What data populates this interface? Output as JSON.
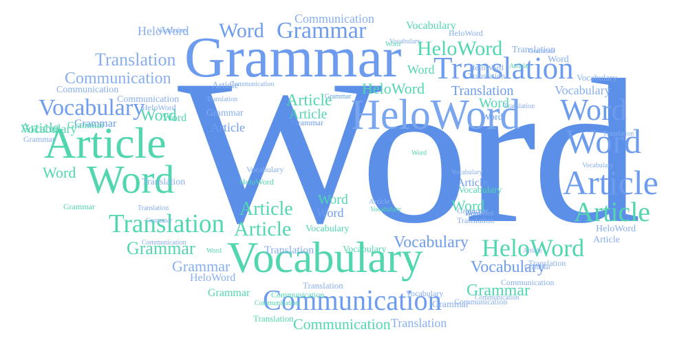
{
  "palette": {
    "blue": "#6495ed",
    "light_blue": "#87aef0",
    "green": "#4fd6b3",
    "light_green": "#7fe0c4"
  },
  "words": [
    {
      "text": "Word",
      "color": "#5b8fe8"
    },
    {
      "text": "Grammar",
      "color": "#6d9cee"
    },
    {
      "text": "Vocabulary",
      "color": "#52d6b0"
    },
    {
      "text": "HeloWord",
      "color": "#7aa6f0"
    },
    {
      "text": "Article",
      "color": "#52d6b0"
    },
    {
      "text": "Word",
      "color": "#52d6b0"
    },
    {
      "text": "Communication",
      "color": "#6d9cee"
    },
    {
      "text": "Translation",
      "color": "#6d9cee"
    },
    {
      "text": "Word",
      "color": "#6d9cee"
    },
    {
      "text": "Word",
      "color": "#6d9cee"
    },
    {
      "text": "Article",
      "color": "#6d9cee"
    },
    {
      "text": "Article",
      "color": "#52d6b0"
    },
    {
      "text": "Translation",
      "color": "#52d6b0"
    },
    {
      "text": "HeloWord",
      "color": "#52d6b0"
    },
    {
      "text": "Grammar",
      "color": "#6d9cee"
    },
    {
      "text": "Word",
      "color": "#6d9cee"
    },
    {
      "text": "Vocabulary",
      "color": "#6d9cee"
    },
    {
      "text": "Article",
      "color": "#52d6b0"
    },
    {
      "text": "Article",
      "color": "#52d6b0"
    },
    {
      "text": "Grammar",
      "color": "#52d6b0"
    },
    {
      "text": "Vocabulary",
      "color": "#6d9cee"
    },
    {
      "text": "Vocabulary",
      "color": "#6d9cee"
    },
    {
      "text": "Translation",
      "color": "#87aef0"
    },
    {
      "text": "Communication",
      "color": "#87aef0"
    },
    {
      "text": "Communication",
      "color": "#52d6b0"
    },
    {
      "text": "Grammar",
      "color": "#52d6b0"
    },
    {
      "text": "Grammar",
      "color": "#87aef0"
    },
    {
      "text": "HeloWord",
      "color": "#52d6b0"
    },
    {
      "text": "Word",
      "color": "#52d6b0"
    },
    {
      "text": "Word",
      "color": "#6d9cee"
    },
    {
      "text": "Translation",
      "color": "#6d9cee"
    },
    {
      "text": "Vocabulary",
      "color": "#87aef0"
    },
    {
      "text": "Article",
      "color": "#52d6b0"
    },
    {
      "text": "Word",
      "color": "#52d6b0"
    },
    {
      "text": "Article",
      "color": "#6d9cee"
    },
    {
      "text": "Vocabulary",
      "color": "#52d6b0"
    },
    {
      "text": "Word",
      "color": "#52d6b0"
    },
    {
      "text": "Article",
      "color": "#52d6b0"
    },
    {
      "text": "Word",
      "color": "#52d6b0"
    },
    {
      "text": "Grammar",
      "color": "#6d9cee"
    },
    {
      "text": "HeloWord",
      "color": "#87aef0"
    },
    {
      "text": "Translation",
      "color": "#87aef0"
    },
    {
      "text": "Grammar",
      "color": "#52d6b0"
    },
    {
      "text": "Translation",
      "color": "#52d6b0"
    },
    {
      "text": "Word",
      "color": "#52d6b0"
    },
    {
      "text": "Word",
      "color": "#6d9cee"
    },
    {
      "text": "Word",
      "color": "#52d6b0"
    },
    {
      "text": "Word",
      "color": "#52d6b0"
    },
    {
      "text": "HeloWord",
      "color": "#52d6b0"
    },
    {
      "text": "Vocabulary",
      "color": "#52d6b0"
    },
    {
      "text": "Translation",
      "color": "#87aef0"
    },
    {
      "text": "Vocabulary",
      "color": "#87aef0"
    },
    {
      "text": "Grammar",
      "color": "#6d9cee"
    },
    {
      "text": "Article",
      "color": "#6d9cee"
    },
    {
      "text": "Article",
      "color": "#52d6b0"
    },
    {
      "text": "Word",
      "color": "#6d9cee"
    },
    {
      "text": "Vocabulary",
      "color": "#87aef0"
    },
    {
      "text": "Translation",
      "color": "#87aef0"
    },
    {
      "text": "Grammar",
      "color": "#87aef0"
    },
    {
      "text": "HeloWord",
      "color": "#87aef0"
    },
    {
      "text": "Communication",
      "color": "#87aef0"
    },
    {
      "text": "Communication",
      "color": "#87aef0"
    },
    {
      "text": "Grammar",
      "color": "#87aef0"
    },
    {
      "text": "Translation",
      "color": "#87aef0"
    },
    {
      "text": "Communication",
      "color": "#87aef0"
    },
    {
      "text": "Grammar",
      "color": "#52d6b0"
    },
    {
      "text": "Grammar",
      "color": "#52d6b0"
    },
    {
      "text": "HeloWord",
      "color": "#87aef0"
    },
    {
      "text": "Vocabulary",
      "color": "#87aef0"
    },
    {
      "text": "Translation",
      "color": "#87aef0"
    },
    {
      "text": "Article",
      "color": "#87aef0"
    },
    {
      "text": "Translation",
      "color": "#87aef0"
    },
    {
      "text": "Vocabulary",
      "color": "#87aef0"
    },
    {
      "text": "HeloWord",
      "color": "#87aef0"
    },
    {
      "text": "Vocabulary",
      "color": "#52d6b0"
    },
    {
      "text": "Vocabulary",
      "color": "#87aef0"
    },
    {
      "text": "HeloWord",
      "color": "#87aef0"
    },
    {
      "text": "Translation",
      "color": "#87aef0"
    },
    {
      "text": "Communication",
      "color": "#87aef0"
    },
    {
      "text": "Communication",
      "color": "#87aef0"
    },
    {
      "text": "Vocabulary",
      "color": "#87aef0"
    },
    {
      "text": "Word",
      "color": "#52d6b0"
    },
    {
      "text": "Article",
      "color": "#87aef0"
    },
    {
      "text": "Grammar",
      "color": "#87aef0"
    },
    {
      "text": "Word",
      "color": "#6d9cee"
    },
    {
      "text": "Grammar",
      "color": "#87aef0"
    },
    {
      "text": "Translation",
      "color": "#87aef0"
    },
    {
      "text": "Communication",
      "color": "#87aef0"
    },
    {
      "text": "Communication",
      "color": "#52d6b0"
    },
    {
      "text": "Vocabulary",
      "color": "#52d6b0"
    },
    {
      "text": "Grammar",
      "color": "#52d6b0"
    },
    {
      "text": "HeloWord",
      "color": "#52d6b0"
    },
    {
      "text": "Vocabulary",
      "color": "#52d6b0"
    },
    {
      "text": "Article",
      "color": "#87aef0"
    },
    {
      "text": "Word",
      "color": "#52d6b0"
    },
    {
      "text": "Grammar",
      "color": "#87aef0"
    },
    {
      "text": "Word",
      "color": "#87aef0"
    },
    {
      "text": "Grammar",
      "color": "#87aef0"
    },
    {
      "text": "Article",
      "color": "#87aef0"
    },
    {
      "text": "Vocabulary",
      "color": "#52d6b0"
    },
    {
      "text": "Communication",
      "color": "#52d6b0"
    },
    {
      "text": "Vocabulary",
      "color": "#87aef0"
    },
    {
      "text": "Translation",
      "color": "#87aef0"
    },
    {
      "text": "Communication",
      "color": "#87aef0"
    },
    {
      "text": "Translation",
      "color": "#87aef0"
    },
    {
      "text": "Translation",
      "color": "#87aef0"
    },
    {
      "text": "HeloWord",
      "color": "#87aef0"
    },
    {
      "text": "HeloWord",
      "color": "#87aef0"
    },
    {
      "text": "Translation",
      "color": "#87aef0"
    },
    {
      "text": "Grammar",
      "color": "#87aef0"
    },
    {
      "text": "Word",
      "color": "#52d6b0"
    },
    {
      "text": "Article",
      "color": "#52d6b0"
    },
    {
      "text": "Grammar",
      "color": "#87aef0"
    },
    {
      "text": "Communication",
      "color": "#87aef0"
    }
  ]
}
